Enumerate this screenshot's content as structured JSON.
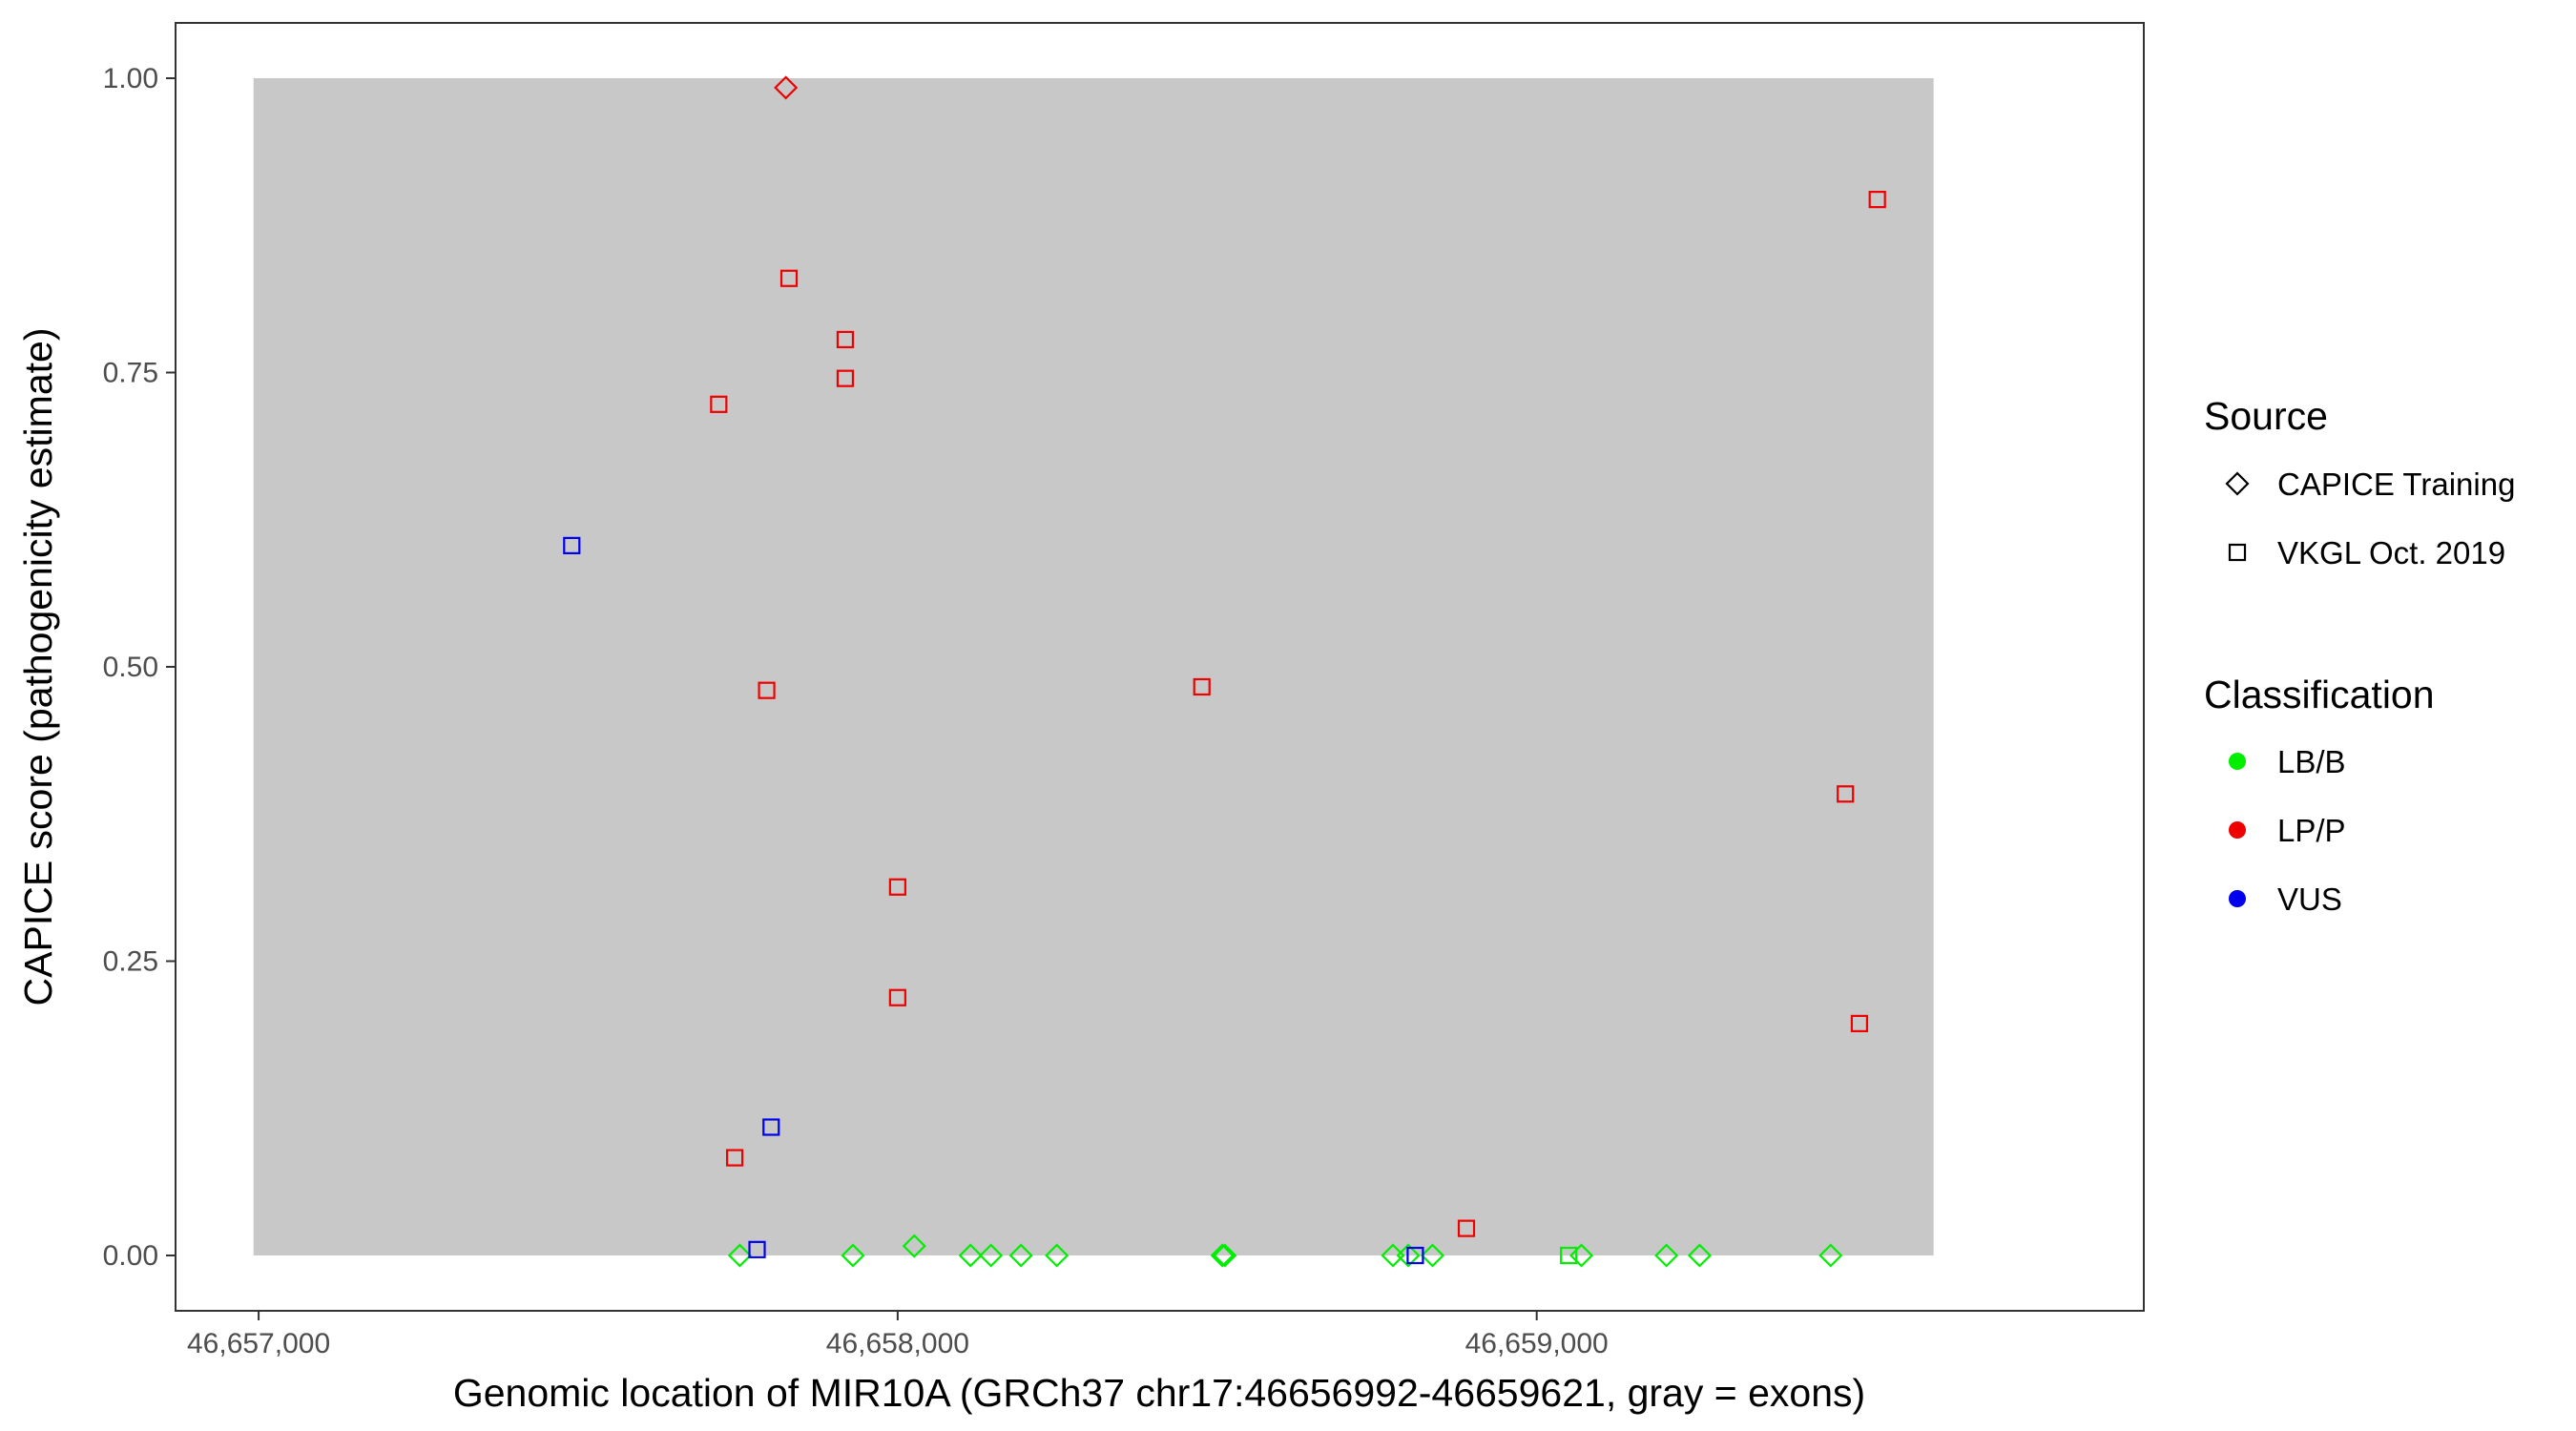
{
  "chart_data": {
    "type": "scatter",
    "xlabel": "Genomic location of MIR10A (GRCh37 chr17:46656992-46659621, gray = exons)",
    "ylabel": "CAPICE score (pathogenicity estimate)",
    "xlim": [
      46656870,
      46659950
    ],
    "ylim": [
      -0.047,
      1.047
    ],
    "x_ticks": [
      46657000,
      46658000,
      46659000
    ],
    "x_tick_labels": [
      "46,657,000",
      "46,658,000",
      "46,659,000"
    ],
    "y_ticks": [
      0,
      0.25,
      0.5,
      0.75,
      1.0
    ],
    "y_tick_labels": [
      "0.00",
      "0.25",
      "0.50",
      "0.75",
      "1.00"
    ],
    "exon_regions": [
      {
        "start": 46656992,
        "end": 46659621,
        "ymin": 0,
        "ymax": 1
      }
    ],
    "grid": false,
    "legend_position": "right",
    "legend": {
      "source_title": "Source",
      "source_items": [
        {
          "label": "CAPICE Training",
          "shape": "diamond"
        },
        {
          "label": "VKGL Oct. 2019",
          "shape": "square"
        }
      ],
      "classification_title": "Classification",
      "classification_items": [
        {
          "label": "LB/B",
          "color": "#00ee00"
        },
        {
          "label": "LP/P",
          "color": "#ee0000"
        },
        {
          "label": "VUS",
          "color": "#0000ee"
        }
      ]
    },
    "series": [
      {
        "source": "CAPICE Training",
        "classification": "LB/B",
        "shape": "diamond",
        "color": "#00ee00",
        "x": [
          46657753,
          46657930,
          46658026,
          46658114,
          46658146,
          46658193,
          46658249,
          46658508,
          46658512,
          46658775,
          46658799,
          46658837,
          46659070,
          46659203,
          46659255,
          46659460
        ],
        "y": [
          0.0,
          0.0,
          0.008,
          0.0,
          0.0,
          0.0,
          0.0,
          0.0,
          0.0,
          0.0,
          0.0,
          0.0,
          0.0,
          0.0,
          0.0,
          0.0
        ]
      },
      {
        "source": "CAPICE Training",
        "classification": "LP/P",
        "shape": "diamond",
        "color": "#ee0000",
        "x": [
          46657825
        ],
        "y": [
          0.992
        ]
      },
      {
        "source": "VKGL Oct. 2019",
        "classification": "LB/B",
        "shape": "square",
        "color": "#00ee00",
        "x": [
          46659050
        ],
        "y": [
          0.0
        ]
      },
      {
        "source": "VKGL Oct. 2019",
        "classification": "LP/P",
        "shape": "square",
        "color": "#ee0000",
        "x": [
          46657720,
          46657745,
          46657795,
          46657830,
          46657918,
          46657918,
          46658000,
          46658000,
          46658476,
          46658890,
          46659483,
          46659505,
          46659533
        ],
        "y": [
          0.723,
          0.083,
          0.48,
          0.83,
          0.778,
          0.745,
          0.313,
          0.219,
          0.483,
          0.023,
          0.392,
          0.197,
          0.897
        ]
      },
      {
        "source": "VKGL Oct. 2019",
        "classification": "VUS",
        "shape": "square",
        "color": "#0000ee",
        "x": [
          46657490,
          46657780,
          46657802,
          46658810
        ],
        "y": [
          0.603,
          0.005,
          0.109,
          0.0
        ]
      }
    ]
  }
}
